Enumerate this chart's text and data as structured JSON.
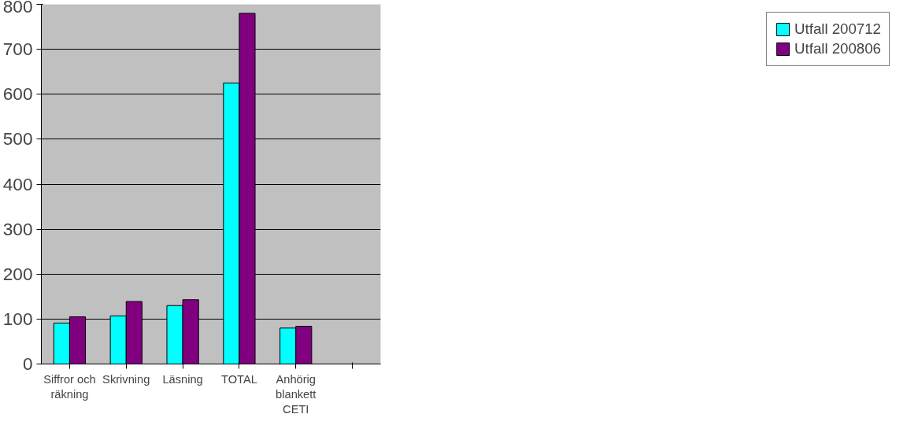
{
  "chart_data": {
    "type": "bar",
    "categories": [
      "Siffror och räkning",
      "Skrivning",
      "Läsning",
      "TOTAL",
      "Anhörig blankett CETI",
      null
    ],
    "series": [
      {
        "name": "Utfall 200712",
        "color": "#00ffff",
        "values": [
          91,
          107,
          130,
          625,
          80,
          null
        ]
      },
      {
        "name": "Utfall 200806",
        "color": "#800080",
        "values": [
          105,
          139,
          143,
          780,
          84,
          null
        ]
      }
    ],
    "ylim": [
      0,
      800
    ],
    "yticks": [
      0,
      100,
      200,
      300,
      400,
      500,
      600,
      700,
      800
    ],
    "grid": "y",
    "legend": "right"
  }
}
